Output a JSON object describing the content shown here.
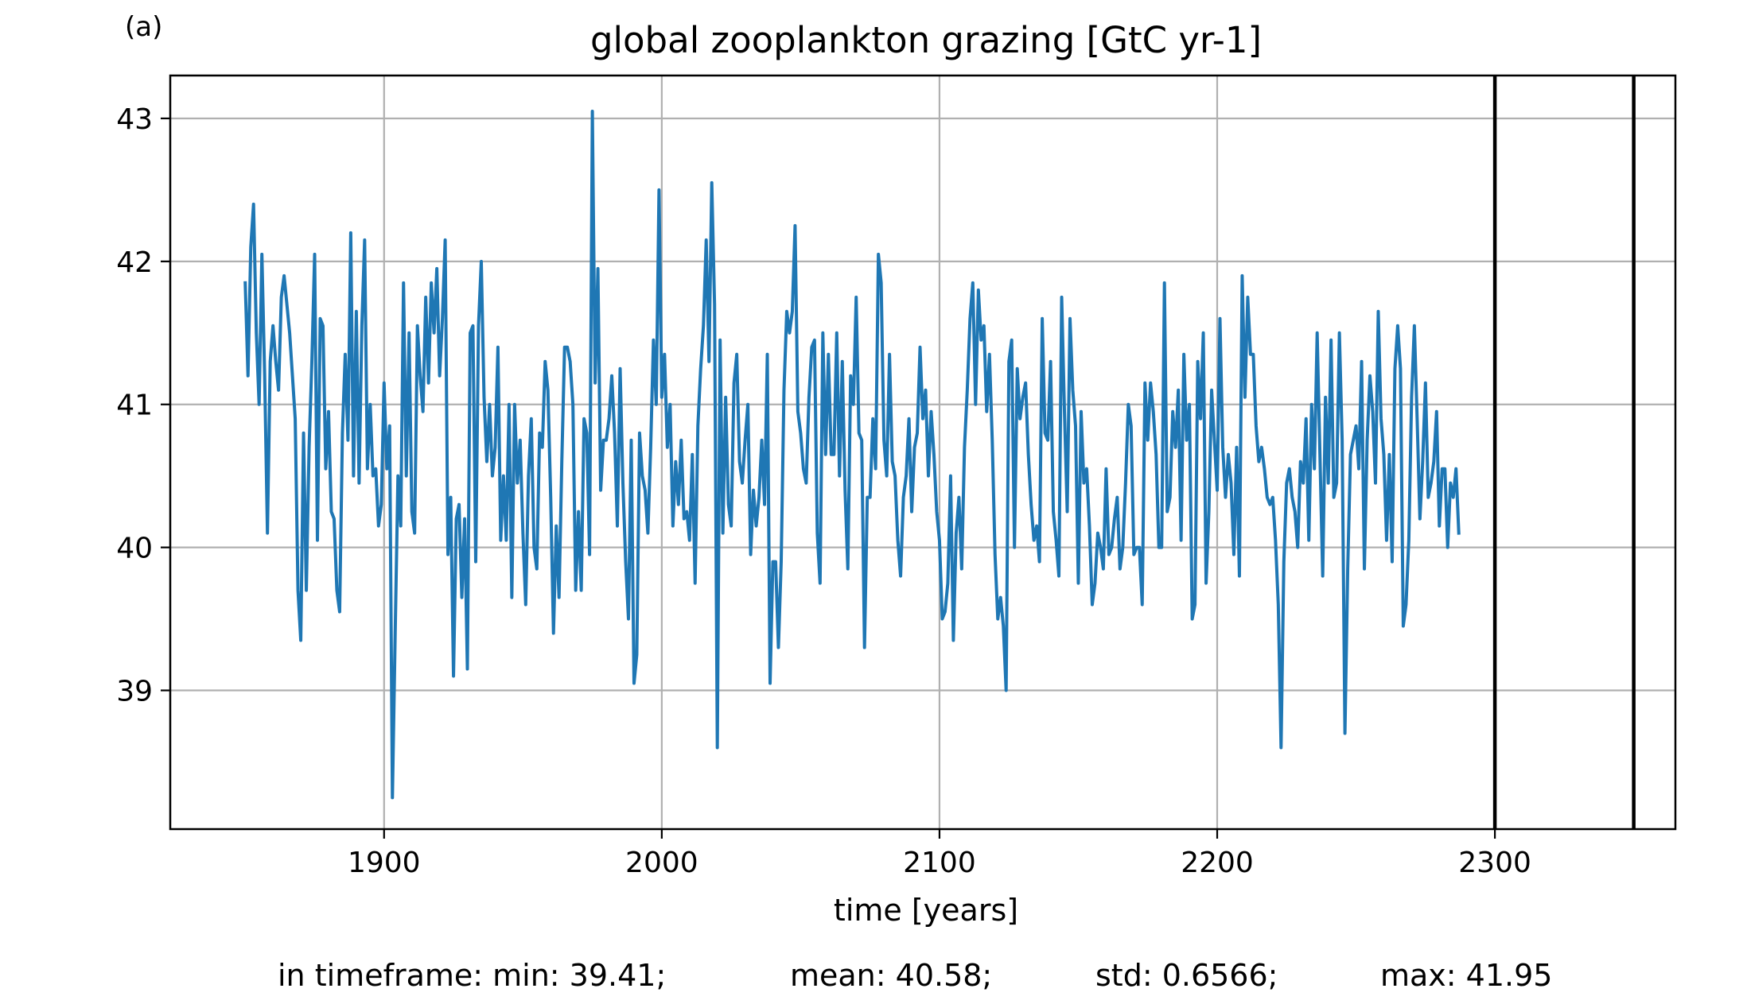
{
  "panel_label": "(a)",
  "stats": {
    "prefix": "in timeframe: min: 39.41;",
    "mean": "mean: 40.58;",
    "std": "std: 0.6566;",
    "max": "max: 41.95"
  },
  "colors": {
    "line": "#1f77b4",
    "grid": "#b0b0b0",
    "vline": "#000000"
  },
  "chart_data": {
    "type": "line",
    "title": "global zooplankton grazing [GtC yr-1]",
    "xlabel": "time [years]",
    "ylabel": "",
    "xlim": [
      1823,
      2365
    ],
    "ylim": [
      38.03,
      43.3
    ],
    "xticks": [
      1900,
      2000,
      2100,
      2200,
      2300
    ],
    "yticks": [
      39,
      40,
      41,
      42,
      43
    ],
    "grid": true,
    "vertical_lines": [
      2300,
      2350
    ],
    "series": [
      {
        "name": "",
        "x_start": 1850,
        "x_step": 1,
        "values": [
          41.85,
          41.2,
          42.1,
          42.4,
          41.5,
          41.0,
          42.05,
          41.2,
          40.1,
          41.3,
          41.55,
          41.3,
          41.1,
          41.75,
          41.9,
          41.7,
          41.5,
          41.2,
          40.9,
          39.7,
          39.35,
          40.8,
          39.7,
          40.7,
          41.3,
          42.05,
          40.05,
          41.6,
          41.55,
          40.55,
          40.95,
          40.25,
          40.2,
          39.7,
          39.55,
          40.8,
          41.35,
          40.75,
          42.2,
          40.5,
          41.65,
          40.45,
          41.55,
          42.15,
          40.55,
          41.0,
          40.5,
          40.55,
          40.15,
          40.3,
          41.15,
          40.55,
          40.85,
          38.25,
          39.4,
          40.5,
          40.15,
          41.85,
          40.5,
          41.5,
          40.25,
          40.1,
          41.55,
          41.2,
          40.95,
          41.75,
          41.15,
          41.85,
          41.5,
          41.95,
          41.2,
          41.6,
          42.15,
          39.95,
          40.35,
          39.1,
          40.2,
          40.3,
          39.65,
          40.2,
          39.15,
          41.5,
          41.55,
          39.9,
          41.55,
          42.0,
          41.05,
          40.6,
          41.0,
          40.5,
          40.7,
          41.4,
          40.05,
          40.5,
          40.05,
          41.0,
          39.65,
          41.0,
          40.45,
          40.75,
          40.1,
          39.6,
          40.5,
          40.9,
          40.0,
          39.85,
          40.8,
          40.7,
          41.3,
          41.1,
          40.35,
          39.4,
          40.15,
          39.65,
          40.6,
          41.4,
          41.4,
          41.3,
          41.0,
          39.7,
          40.25,
          39.7,
          40.9,
          40.8,
          39.95,
          43.05,
          41.15,
          41.95,
          40.4,
          40.75,
          40.75,
          40.9,
          41.2,
          40.8,
          40.15,
          41.25,
          40.45,
          39.9,
          39.5,
          40.75,
          39.05,
          39.25,
          40.8,
          40.5,
          40.4,
          40.1,
          40.7,
          41.45,
          41.0,
          42.5,
          41.05,
          41.35,
          40.7,
          41.0,
          40.15,
          40.6,
          40.3,
          40.75,
          40.2,
          40.25,
          40.05,
          40.65,
          39.75,
          40.85,
          41.25,
          41.55,
          42.15,
          41.3,
          42.55,
          41.7,
          38.6,
          41.45,
          40.1,
          41.05,
          40.3,
          40.15,
          41.15,
          41.35,
          40.6,
          40.45,
          40.75,
          41.0,
          39.95,
          40.4,
          40.15,
          40.35,
          40.75,
          40.3,
          41.35,
          39.05,
          39.9,
          39.9,
          39.3,
          39.9,
          41.1,
          41.65,
          41.5,
          41.65,
          42.25,
          40.95,
          40.8,
          40.55,
          40.45,
          41.05,
          41.4,
          41.45,
          40.1,
          39.75,
          41.5,
          40.65,
          41.35,
          40.65,
          40.65,
          41.5,
          40.5,
          41.3,
          40.4,
          39.85,
          41.2,
          41.0,
          41.75,
          40.8,
          40.75,
          39.3,
          40.35,
          40.35,
          40.9,
          40.55,
          42.05,
          41.85,
          40.75,
          40.5,
          41.35,
          40.6,
          40.5,
          40.05,
          39.8,
          40.35,
          40.5,
          40.9,
          40.25,
          40.7,
          40.8,
          41.4,
          40.9,
          41.1,
          40.5,
          40.95,
          40.65,
          40.25,
          40.05,
          39.5,
          39.55,
          39.75,
          40.5,
          39.35,
          40.1,
          40.35,
          39.85,
          40.7,
          41.1,
          41.6,
          41.85,
          41.0,
          41.8,
          41.45,
          41.55,
          40.95,
          41.35,
          40.75,
          39.95,
          39.5,
          39.65,
          39.45,
          39.0,
          41.3,
          41.45,
          40.0,
          41.25,
          40.9,
          41.05,
          41.15,
          40.65,
          40.3,
          40.05,
          40.15,
          39.9,
          41.6,
          40.8,
          40.75,
          41.3,
          40.25,
          40.05,
          39.8,
          41.75,
          40.95,
          40.25,
          41.6,
          41.1,
          40.85,
          39.75,
          40.95,
          40.45,
          40.55,
          40.15,
          39.6,
          39.75,
          40.1,
          40.0,
          39.85,
          40.55,
          39.95,
          40.0,
          40.2,
          40.35,
          39.85,
          40.0,
          40.45,
          41.0,
          40.85,
          39.95,
          40.0,
          40.0,
          39.6,
          41.15,
          40.75,
          41.15,
          40.95,
          40.65,
          40.0,
          40.0,
          41.85,
          40.25,
          40.35,
          40.95,
          40.7,
          41.1,
          40.05,
          41.35,
          40.75,
          41.0,
          39.5,
          39.6,
          41.3,
          40.9,
          41.5,
          39.75,
          40.25,
          41.1,
          40.75,
          40.4,
          41.6,
          40.7,
          40.35,
          40.65,
          40.45,
          39.95,
          40.7,
          39.8,
          41.9,
          41.05,
          41.75,
          41.35,
          41.35,
          40.85,
          40.6,
          40.7,
          40.55,
          40.35,
          40.3,
          40.35,
          40.05,
          39.6,
          38.6,
          39.9,
          40.45,
          40.55,
          40.35,
          40.25,
          40.0,
          40.6,
          40.45,
          40.9,
          40.05,
          41.0,
          40.55,
          41.5,
          40.65,
          39.8,
          41.05,
          40.45,
          41.45,
          40.35,
          40.45,
          41.5,
          40.75,
          38.7,
          39.85,
          40.65,
          40.75,
          40.85,
          40.55,
          41.3,
          39.85,
          40.75,
          41.2,
          40.95,
          40.45,
          41.65,
          40.9,
          40.65,
          40.05,
          40.65,
          39.9,
          41.25,
          41.55,
          41.25,
          39.45,
          39.6,
          40.05,
          41.05,
          41.55,
          40.9,
          40.2,
          40.6,
          41.15,
          40.35,
          40.45,
          40.6,
          40.95,
          40.15,
          40.55,
          40.55,
          40.0,
          40.45,
          40.35,
          40.55,
          40.1
        ]
      }
    ]
  }
}
